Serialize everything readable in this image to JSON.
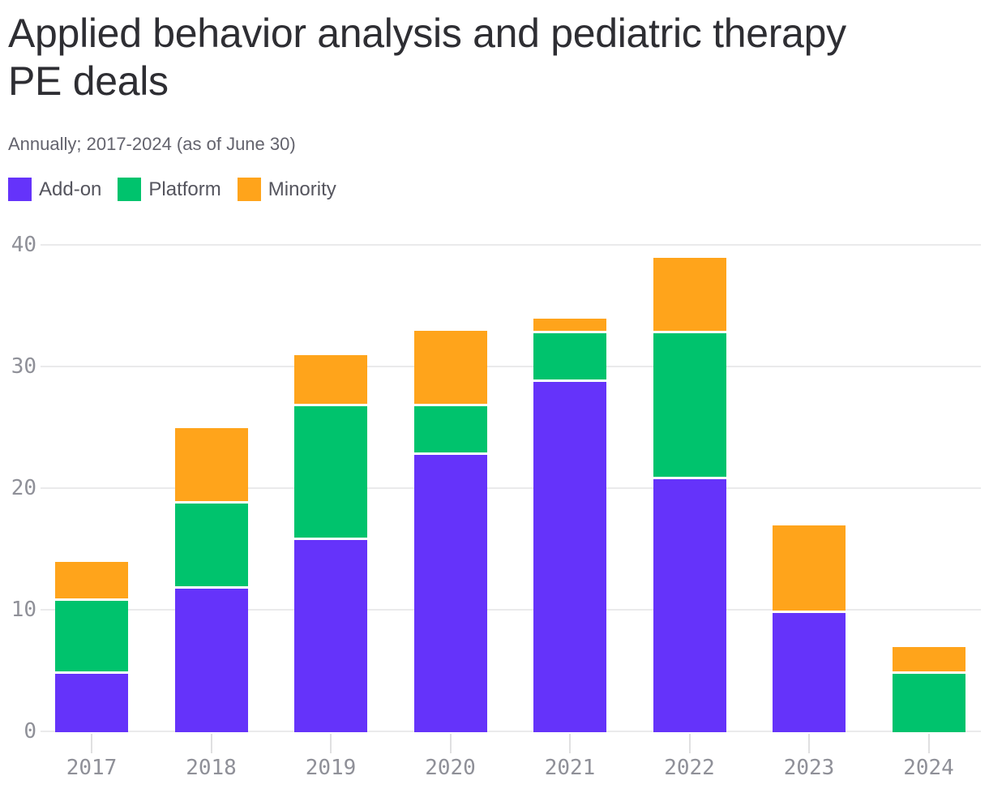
{
  "header": {
    "title_lines": [
      "Applied behavior analysis and pediatric therapy",
      "PE deals"
    ],
    "subtitle": "Annually; 2017-2024 (as of June 30)"
  },
  "legend": [
    {
      "label": "Add-on",
      "color": "#6533fa"
    },
    {
      "label": "Platform",
      "color": "#00c36d"
    },
    {
      "label": "Minority",
      "color": "#ffa41b"
    }
  ],
  "colors": {
    "addon": "#6533fa",
    "platform": "#00c36d",
    "minority": "#ffa41b",
    "gridline": "#eaeaeb",
    "axis_text": "#8f9098",
    "title_text": "#2e2e33"
  },
  "chart_data": {
    "type": "bar",
    "stacked": true,
    "title": "Applied behavior analysis and pediatric therapy PE deals",
    "subtitle": "Annually; 2017-2024 (as of June 30)",
    "categories": [
      "2017",
      "2018",
      "2019",
      "2020",
      "2021",
      "2022",
      "2023",
      "2024"
    ],
    "series": [
      {
        "name": "Add-on",
        "color": "#6533fa",
        "values": [
          5,
          12,
          16,
          23,
          29,
          21,
          10,
          0
        ]
      },
      {
        "name": "Platform",
        "color": "#00c36d",
        "values": [
          6,
          7,
          11,
          4,
          4,
          12,
          0,
          5
        ]
      },
      {
        "name": "Minority",
        "color": "#ffa41b",
        "values": [
          3,
          6,
          4,
          6,
          1,
          6,
          7,
          2
        ]
      }
    ],
    "totals": [
      14,
      25,
      31,
      33,
      34,
      39,
      17,
      7
    ],
    "xlabel": "",
    "ylabel": "",
    "ylim": [
      0,
      40
    ],
    "yticks": [
      0,
      10,
      20,
      30,
      40
    ],
    "grid": true,
    "legend_position": "top-left"
  }
}
